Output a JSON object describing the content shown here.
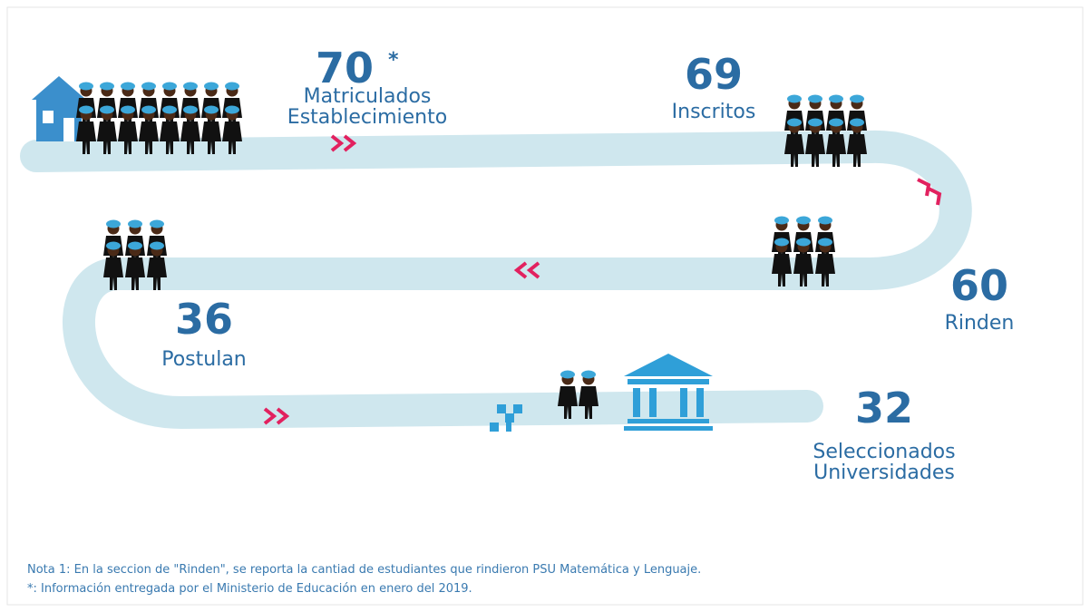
{
  "stages": [
    {
      "value": 70,
      "marker": "*",
      "label_lines": [
        "Matriculados",
        "Establecimiento"
      ]
    },
    {
      "value": 69,
      "label_lines": [
        "Inscritos"
      ]
    },
    {
      "value": 60,
      "label_lines": [
        "Rinden"
      ]
    },
    {
      "value": 36,
      "label_lines": [
        "Postulan"
      ]
    },
    {
      "value": 32,
      "label_lines": [
        "Seleccionados",
        "Universidades"
      ]
    }
  ],
  "notes": [
    "Nota 1: En la seccion de \"Rinden\", se reporta la cantiad de estudiantes que rindieron PSU Matemática y Lenguaje.",
    "*: Información entregada por el Ministerio de Educación en enero del 2019."
  ]
}
